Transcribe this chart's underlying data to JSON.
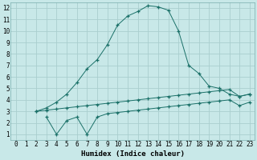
{
  "xlabel": "Humidex (Indice chaleur)",
  "bg_color": "#c8e8e8",
  "grid_color": "#aacece",
  "line_color": "#1a7068",
  "xlim": [
    -0.5,
    23.5
  ],
  "ylim": [
    0.5,
    12.5
  ],
  "xticks": [
    0,
    1,
    2,
    3,
    4,
    5,
    6,
    7,
    8,
    9,
    10,
    11,
    12,
    13,
    14,
    15,
    16,
    17,
    18,
    19,
    20,
    21,
    22,
    23
  ],
  "yticks": [
    1,
    2,
    3,
    4,
    5,
    6,
    7,
    8,
    9,
    10,
    11,
    12
  ],
  "line1_x": [
    2,
    3,
    4,
    5,
    6,
    7,
    8,
    9,
    10,
    11,
    12,
    13,
    14,
    15,
    16,
    17,
    18,
    19,
    20,
    21,
    22,
    23
  ],
  "line1_y": [
    3.0,
    3.3,
    3.8,
    4.5,
    5.5,
    6.7,
    7.5,
    8.8,
    10.5,
    11.3,
    11.7,
    12.2,
    12.1,
    11.8,
    10.0,
    7.0,
    6.3,
    5.2,
    5.0,
    4.5,
    4.3,
    4.5
  ],
  "line2_x": [
    2,
    3,
    4,
    5,
    6,
    7,
    8,
    9,
    10,
    11,
    12,
    13,
    14,
    15,
    16,
    17,
    18,
    19,
    20,
    21,
    22,
    23
  ],
  "line2_y": [
    3.0,
    3.1,
    3.2,
    3.3,
    3.4,
    3.5,
    3.6,
    3.7,
    3.8,
    3.9,
    4.0,
    4.1,
    4.2,
    4.3,
    4.4,
    4.5,
    4.6,
    4.7,
    4.8,
    4.9,
    4.3,
    4.5
  ],
  "line3_x": [
    3,
    4,
    5,
    6,
    7,
    8,
    9,
    10,
    11,
    12,
    13,
    14,
    15,
    16,
    17,
    18,
    19,
    20,
    21,
    22,
    23
  ],
  "line3_y": [
    2.5,
    1.0,
    2.2,
    2.5,
    1.0,
    2.5,
    2.8,
    2.9,
    3.0,
    3.1,
    3.2,
    3.3,
    3.4,
    3.5,
    3.6,
    3.7,
    3.8,
    3.9,
    4.0,
    3.5,
    3.8
  ],
  "tick_fontsize": 5.5,
  "xlabel_fontsize": 6.5
}
